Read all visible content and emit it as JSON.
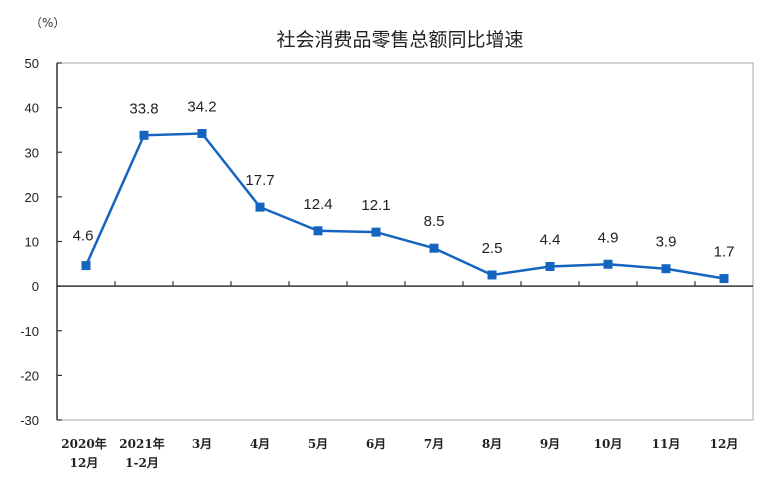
{
  "chart_data": {
    "type": "line",
    "title": "社会消费品零售总额同比增速",
    "unit_label": "（%）",
    "xlabel": "",
    "ylabel": "%",
    "ylim": [
      -30,
      50
    ],
    "yticks": [
      50,
      40,
      30,
      20,
      10,
      0,
      -10,
      -20,
      -30
    ],
    "grid": false,
    "legend": null,
    "categories": [
      [
        "2020年",
        "12月"
      ],
      [
        "2021年",
        "1-2月"
      ],
      [
        "3月"
      ],
      [
        "4月"
      ],
      [
        "5月"
      ],
      [
        "6月"
      ],
      [
        "7月"
      ],
      [
        "8月"
      ],
      [
        "9月"
      ],
      [
        "10月"
      ],
      [
        "11月"
      ],
      [
        "12月"
      ]
    ],
    "series": [
      {
        "name": "社会消费品零售总额同比增速",
        "color": "#1565C0",
        "values": [
          4.6,
          33.8,
          34.2,
          17.7,
          12.4,
          12.1,
          8.5,
          2.5,
          4.4,
          4.9,
          3.9,
          1.7
        ]
      }
    ]
  }
}
